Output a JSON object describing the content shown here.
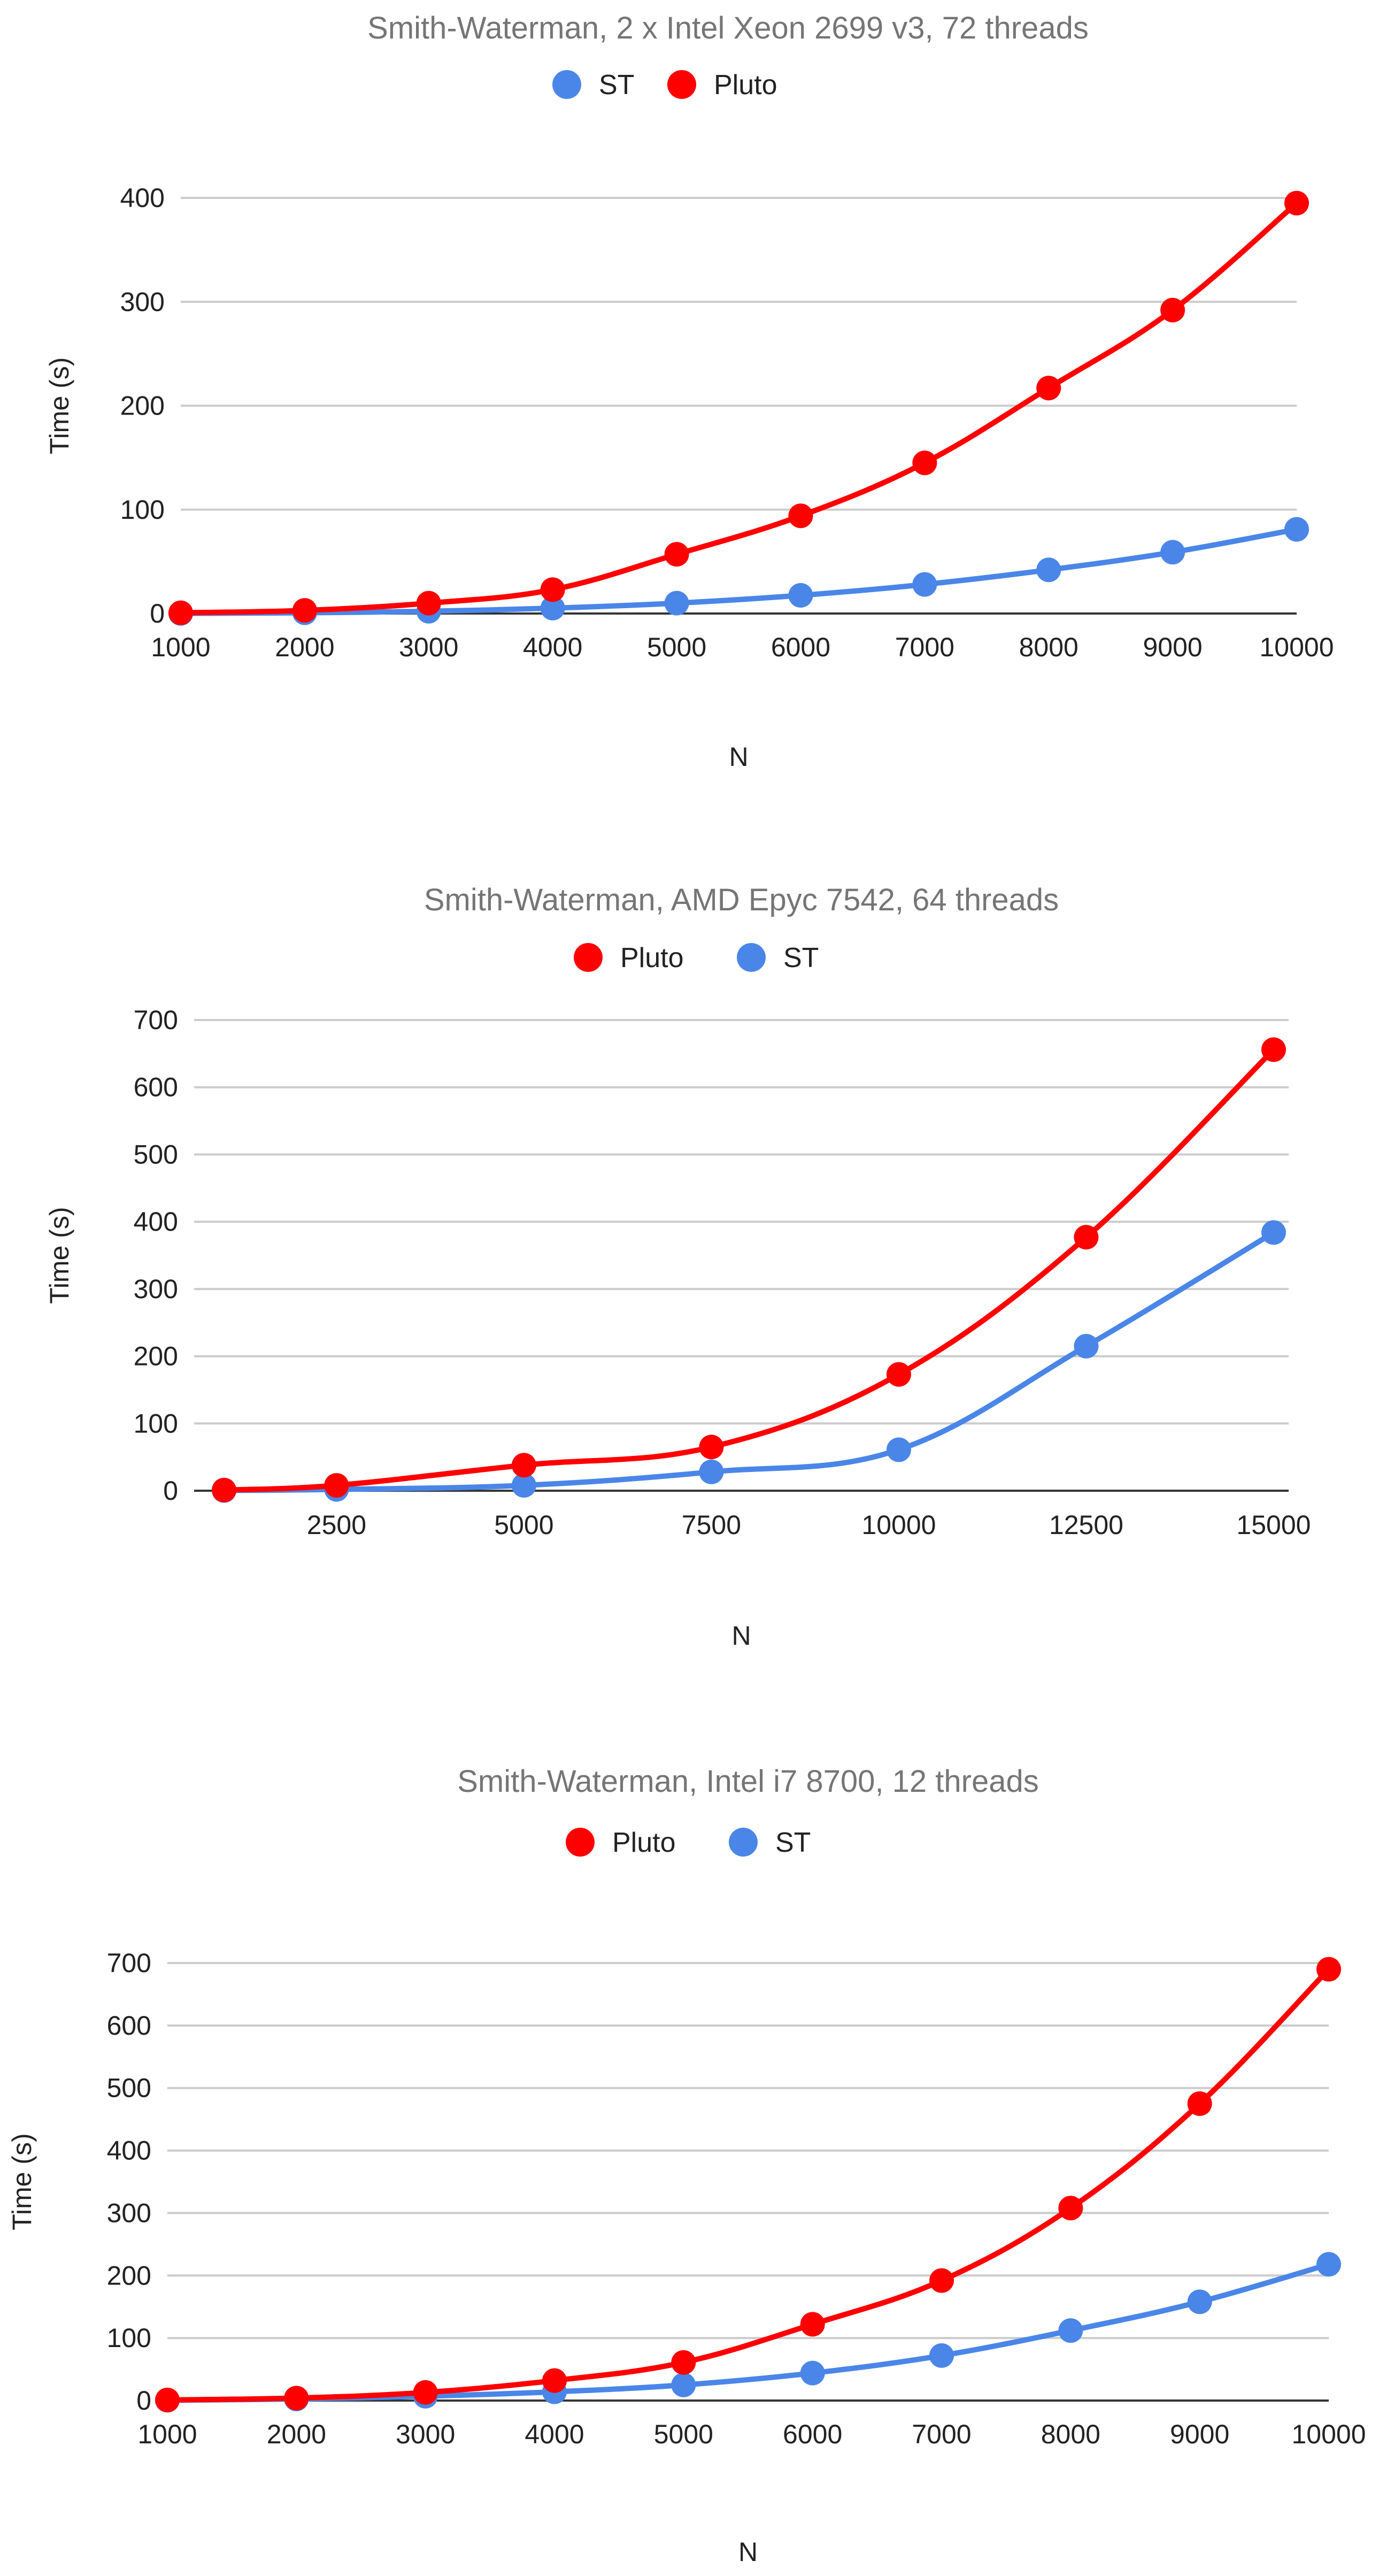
{
  "colors": {
    "ST": "#4a86e8",
    "Pluto": "#ff0000",
    "title": "#757575",
    "grid": "#cccccc",
    "axis": "#333333"
  },
  "chart_data": [
    {
      "type": "line",
      "title": "Smith-Waterman, 2 x Intel Xeon 2699 v3, 72 threads",
      "xlabel": "N",
      "ylabel": "Time (s)",
      "legend": [
        "ST",
        "Pluto"
      ],
      "x": [
        1000,
        2000,
        3000,
        4000,
        5000,
        6000,
        7000,
        8000,
        9000,
        10000
      ],
      "xticks": [
        1000,
        2000,
        3000,
        4000,
        5000,
        6000,
        7000,
        8000,
        9000,
        10000
      ],
      "xlim": [
        1000,
        10000
      ],
      "yticks": [
        0,
        100,
        200,
        300,
        400
      ],
      "ylim": [
        0,
        400
      ],
      "series": [
        {
          "name": "ST",
          "values": [
            0.1,
            0.7,
            2.2,
            5.2,
            10,
            17.5,
            28,
            42,
            59,
            81
          ]
        },
        {
          "name": "Pluto",
          "values": [
            0.7,
            3,
            10,
            23,
            57,
            94,
            145,
            217,
            292,
            395
          ]
        }
      ]
    },
    {
      "type": "line",
      "title": "Smith-Waterman, AMD Epyc 7542, 64 threads",
      "xlabel": "N",
      "ylabel": "Time (s)",
      "legend": [
        "Pluto",
        "ST"
      ],
      "x": [
        1000,
        2500,
        5000,
        7500,
        10000,
        12500,
        15000
      ],
      "xticks": [
        2500,
        5000,
        7500,
        10000,
        12500,
        15000
      ],
      "xlim": [
        600,
        15200
      ],
      "yticks": [
        0,
        100,
        200,
        300,
        400,
        500,
        600,
        700
      ],
      "ylim": [
        0,
        700
      ],
      "series": [
        {
          "name": "Pluto",
          "values": [
            1,
            8,
            38,
            65,
            173,
            377,
            656
          ]
        },
        {
          "name": "ST",
          "values": [
            0.3,
            2,
            8,
            28,
            61,
            215,
            384
          ]
        }
      ]
    },
    {
      "type": "line",
      "title": "Smith-Waterman, Intel i7 8700, 12 threads",
      "xlabel": "N",
      "ylabel": "Time (s)",
      "legend": [
        "Pluto",
        "ST"
      ],
      "x": [
        1000,
        2000,
        3000,
        4000,
        5000,
        6000,
        7000,
        8000,
        9000,
        10000
      ],
      "xticks": [
        1000,
        2000,
        3000,
        4000,
        5000,
        6000,
        7000,
        8000,
        9000,
        10000
      ],
      "xlim": [
        1000,
        10000
      ],
      "yticks": [
        0,
        100,
        200,
        300,
        400,
        500,
        600,
        700
      ],
      "ylim": [
        0,
        700
      ],
      "series": [
        {
          "name": "Pluto",
          "values": [
            1,
            4,
            13,
            32,
            61,
            122,
            192,
            308,
            475,
            690
          ]
        },
        {
          "name": "ST",
          "values": [
            0.5,
            2.5,
            7,
            14,
            25,
            44,
            72,
            112,
            158,
            218
          ]
        }
      ]
    }
  ]
}
